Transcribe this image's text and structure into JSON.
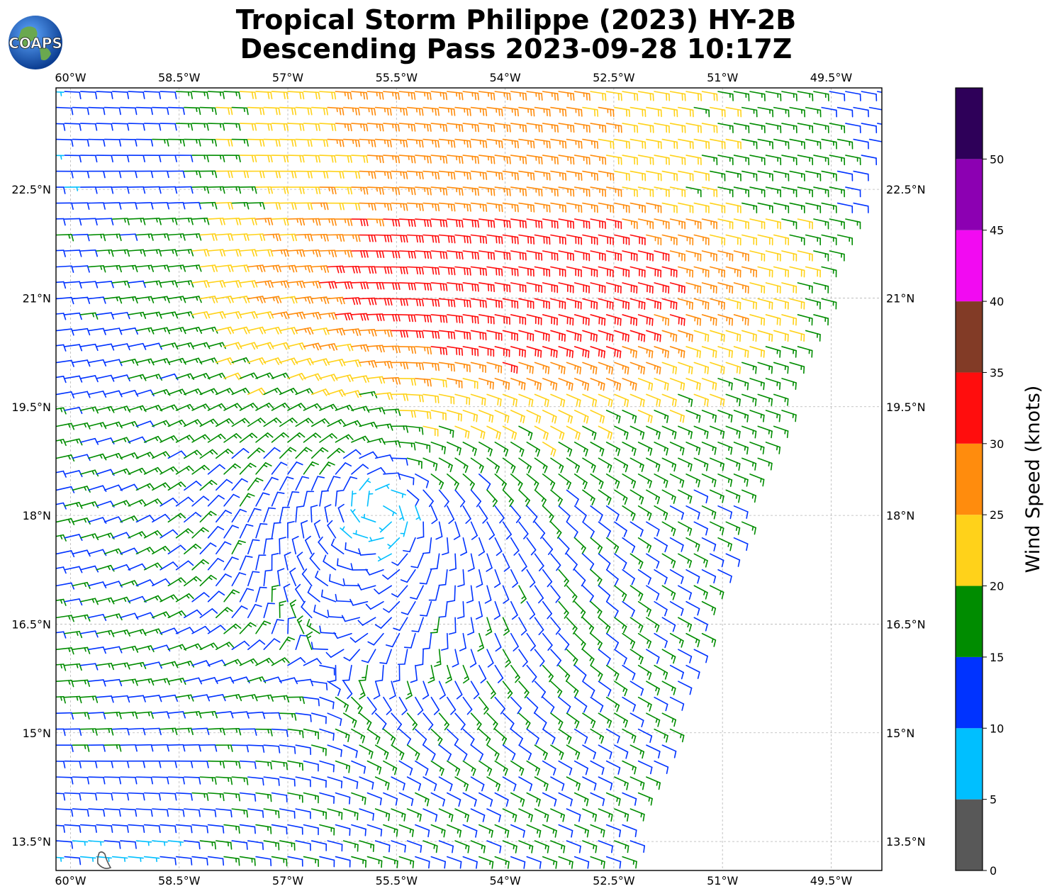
{
  "title": {
    "line1": "Tropical Storm Philippe (2023) HY-2B",
    "line2": "Descending Pass 2023-09-28 10:17Z"
  },
  "logo": {
    "text": "COAPS",
    "icon": "globe-logo-icon"
  },
  "chart_data": {
    "type": "wind-barb-map",
    "lon_range": [
      -60.2,
      -48.8
    ],
    "lat_range": [
      13.1,
      23.9
    ],
    "lon_ticks": [
      {
        "value": -60,
        "label": "60°W"
      },
      {
        "value": -58.5,
        "label": "58.5°W"
      },
      {
        "value": -57,
        "label": "57°W"
      },
      {
        "value": -55.5,
        "label": "55.5°W"
      },
      {
        "value": -54,
        "label": "54°W"
      },
      {
        "value": -52.5,
        "label": "52.5°W"
      },
      {
        "value": -51,
        "label": "51°W"
      },
      {
        "value": -49.5,
        "label": "49.5°W"
      }
    ],
    "lat_ticks": [
      {
        "value": 22.5,
        "label": "22.5°N"
      },
      {
        "value": 21,
        "label": "21°N"
      },
      {
        "value": 19.5,
        "label": "19.5°N"
      },
      {
        "value": 18,
        "label": "18°N"
      },
      {
        "value": 16.5,
        "label": "16.5°N"
      },
      {
        "value": 15,
        "label": "15°N"
      },
      {
        "value": 13.5,
        "label": "13.5°N"
      }
    ],
    "grid": true,
    "storm_center": {
      "lon": -55.7,
      "lat": 18.1
    },
    "swath_lon_edges": [
      {
        "lat": 23.9,
        "east": -48.6
      },
      {
        "lat": 13.1,
        "east": -52.4
      }
    ],
    "colorbar": {
      "label": "Wind Speed (knots)",
      "ticks": [
        0,
        5,
        10,
        15,
        20,
        25,
        30,
        35,
        40,
        45,
        50
      ],
      "range": [
        0,
        55
      ],
      "bins": [
        {
          "min": 0,
          "max": 5,
          "color": "#585858"
        },
        {
          "min": 5,
          "max": 10,
          "color": "#00bfff"
        },
        {
          "min": 10,
          "max": 15,
          "color": "#0033ff"
        },
        {
          "min": 15,
          "max": 20,
          "color": "#008c00"
        },
        {
          "min": 20,
          "max": 25,
          "color": "#ffd21a"
        },
        {
          "min": 25,
          "max": 30,
          "color": "#ff8c0d"
        },
        {
          "min": 30,
          "max": 35,
          "color": "#ff0d0d"
        },
        {
          "min": 35,
          "max": 40,
          "color": "#823b26"
        },
        {
          "min": 40,
          "max": 45,
          "color": "#f20af2"
        },
        {
          "min": 45,
          "max": 50,
          "color": "#8c00b2"
        },
        {
          "min": 50,
          "max": 55,
          "color": "#2e0059"
        }
      ]
    }
  }
}
